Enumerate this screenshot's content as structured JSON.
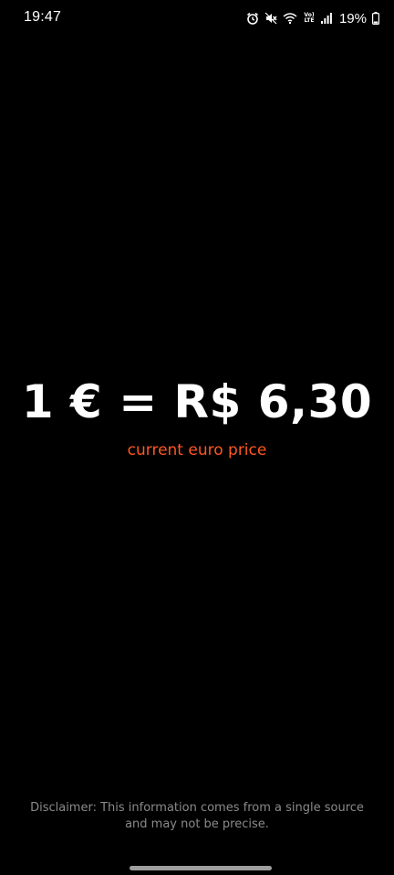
{
  "status_bar": {
    "time": "19:47",
    "battery_percent": "19%",
    "network_label_top": "Vo)",
    "network_label_bottom": "LTE",
    "icons": [
      "alarm-icon",
      "mute-icon",
      "wifi-icon",
      "volte-icon",
      "signal-icon",
      "battery-icon"
    ]
  },
  "main": {
    "price_text": "1 € = R$ 6,30",
    "subtitle": "current euro price"
  },
  "footer": {
    "disclaimer": "Disclaimer: This information comes from a single source and may not be precise."
  },
  "colors": {
    "background": "#000000",
    "accent": "#ff5722",
    "primary_text": "#ffffff",
    "muted_text": "#8a8a8a"
  }
}
